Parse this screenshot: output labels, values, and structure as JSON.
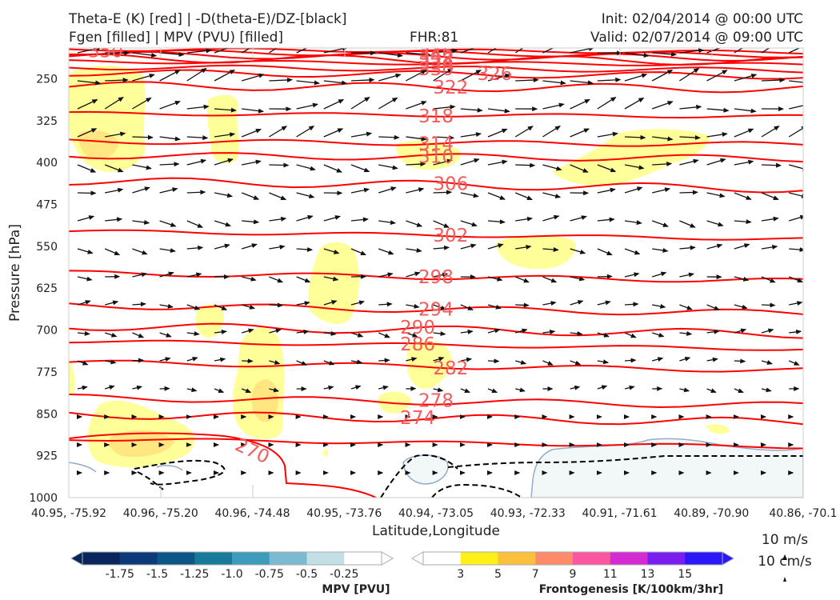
{
  "header": {
    "title_line1": "Theta-E (K) [red] | -D(theta-E)/DZ-[black]",
    "title_line2": "Fgen [filled] | MPV (PVU) [filled]",
    "fhr": "FHR:81",
    "init": "Init: 02/04/2014 @ 00:00 UTC",
    "valid": "Valid: 02/07/2014 @ 09:00 UTC"
  },
  "chart_data": {
    "type": "cross-section",
    "ylabel": "Pressure [hPa]",
    "xlabel": "Latitude,Longitude",
    "y_ticks": [
      "250",
      "325",
      "400",
      "475",
      "550",
      "625",
      "700",
      "775",
      "850",
      "925",
      "1000"
    ],
    "y_values": [
      250,
      325,
      400,
      475,
      550,
      625,
      700,
      775,
      850,
      925,
      1000
    ],
    "ylim": [
      195,
      1000
    ],
    "x_ticks": [
      "40.95, -75.92",
      "40.96, -75.20",
      "40.96, -74.48",
      "40.95, -73.76",
      "40.94, -73.05",
      "40.93, -72.33",
      "40.91, -71.61",
      "40.89, -70.90",
      "40.86, -70.1"
    ],
    "theta_e_labels": [
      {
        "text": "350",
        "x": 0.05,
        "p": 200
      },
      {
        "text": "346",
        "x": 0.5,
        "p": 204
      },
      {
        "text": "342",
        "x": 0.5,
        "p": 210
      },
      {
        "text": "338",
        "x": 0.5,
        "p": 216
      },
      {
        "text": "334",
        "x": 0.5,
        "p": 222
      },
      {
        "text": "330",
        "x": 0.5,
        "p": 232
      },
      {
        "text": "326",
        "x": 0.58,
        "p": 241
      },
      {
        "text": "322",
        "x": 0.52,
        "p": 265
      },
      {
        "text": "318",
        "x": 0.5,
        "p": 317
      },
      {
        "text": "314",
        "x": 0.5,
        "p": 366
      },
      {
        "text": "310",
        "x": 0.5,
        "p": 389
      },
      {
        "text": "306",
        "x": 0.52,
        "p": 438
      },
      {
        "text": "302",
        "x": 0.52,
        "p": 530
      },
      {
        "text": "298",
        "x": 0.5,
        "p": 605
      },
      {
        "text": "294",
        "x": 0.5,
        "p": 663
      },
      {
        "text": "290",
        "x": 0.475,
        "p": 695
      },
      {
        "text": "286",
        "x": 0.475,
        "p": 725
      },
      {
        "text": "282",
        "x": 0.52,
        "p": 768
      },
      {
        "text": "278",
        "x": 0.5,
        "p": 826
      },
      {
        "text": "274",
        "x": 0.475,
        "p": 857
      },
      {
        "text": "270",
        "x": 0.25,
        "p": 916
      }
    ],
    "wind_reference": {
      "line1": "10 m/s",
      "line2": "10 cm/s"
    },
    "mpv_colorbar": {
      "label": "MPV [PVU]",
      "ticks": [
        "-1.75",
        "-1.5",
        "-1.25",
        "-1.0",
        "-0.75",
        "-0.5",
        "-0.25"
      ],
      "colors": [
        "#08255e",
        "#0a3a78",
        "#0c5687",
        "#167a98",
        "#3d9bbb",
        "#7bbad1",
        "#c2dfe6",
        "#ffffff"
      ]
    },
    "fgen_colorbar": {
      "label": "Frontogenesis [K/100km/3hr]",
      "ticks": [
        "3",
        "5",
        "7",
        "9",
        "11",
        "13",
        "15"
      ],
      "colors": [
        "#ffffff",
        "#fff01a",
        "#fcc13c",
        "#fd8a6a",
        "#fa57a0",
        "#d32ad2",
        "#7a1ef0",
        "#2c17f7"
      ]
    },
    "colors": {
      "theta_e": "#ff0000",
      "label": "#f25c5c",
      "fgen_light": "#ffff99",
      "fgen_mid": "#ffe680",
      "mpv_light": "#f2f8f8",
      "mpv_edge": "#93acc8"
    }
  }
}
